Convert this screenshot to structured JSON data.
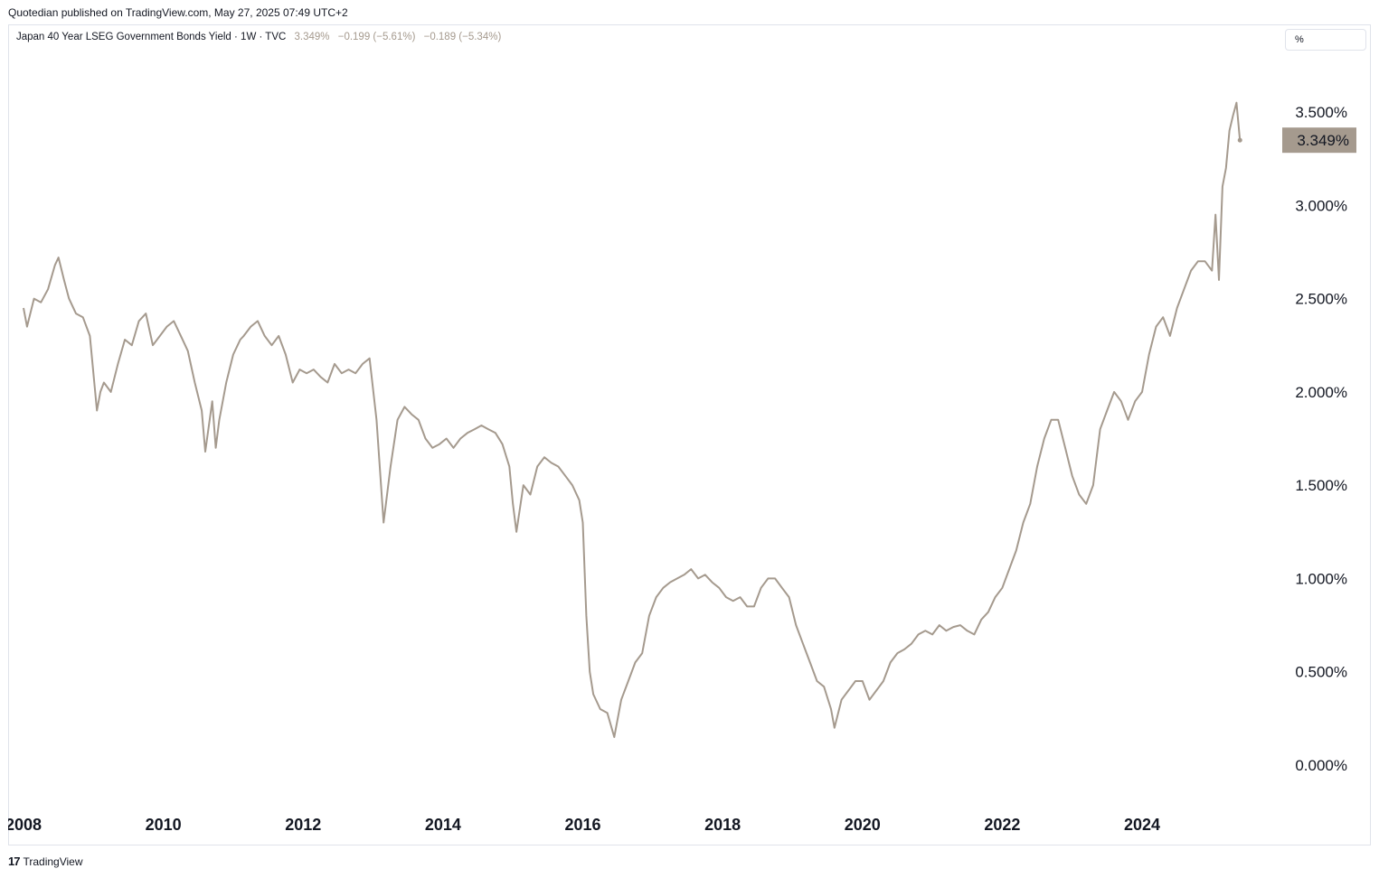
{
  "header": {
    "published": "Quotedian published on TradingView.com, May 27, 2025 07:49 UTC+2"
  },
  "legend": {
    "symbol": "Japan 40 Year LSEG Government Bonds Yield · 1W · TVC",
    "last": "3.349%",
    "change": "−0.199 (−5.61%)",
    "change2": "−0.189 (−5.34%)"
  },
  "unit_selector": {
    "label": "%"
  },
  "footer": {
    "logo": "17",
    "brand": "TradingView"
  },
  "colors": {
    "line": "#a59a8e",
    "price_tag_bg": "#a59a8e",
    "grid": "#e0e3eb"
  },
  "chart_data": {
    "type": "line",
    "title": "Japan 40 Year LSEG Government Bonds Yield",
    "interval": "1W",
    "source": "TVC",
    "xlabel": "",
    "ylabel": "",
    "ylim": [
      0,
      3.5
    ],
    "xlim": [
      2008.0,
      2025.45
    ],
    "y_ticks": [
      {
        "value": 3.5,
        "label": "3.500%"
      },
      {
        "value": 3.0,
        "label": "3.000%"
      },
      {
        "value": 2.5,
        "label": "2.500%"
      },
      {
        "value": 2.0,
        "label": "2.000%"
      },
      {
        "value": 1.5,
        "label": "1.500%"
      },
      {
        "value": 1.0,
        "label": "1.000%"
      },
      {
        "value": 0.5,
        "label": "0.500%"
      },
      {
        "value": 0.0,
        "label": "0.000%"
      }
    ],
    "x_ticks": [
      {
        "value": 2008,
        "label": "2008"
      },
      {
        "value": 2010,
        "label": "2010"
      },
      {
        "value": 2012,
        "label": "2012"
      },
      {
        "value": 2014,
        "label": "2014"
      },
      {
        "value": 2016,
        "label": "2016"
      },
      {
        "value": 2018,
        "label": "2018"
      },
      {
        "value": 2020,
        "label": "2020"
      },
      {
        "value": 2022,
        "label": "2022"
      },
      {
        "value": 2024,
        "label": "2024"
      }
    ],
    "last_value": {
      "value": 3.349,
      "label": "3.349%"
    },
    "grid": false,
    "series": [
      {
        "x": [
          2008.0,
          2008.05,
          2008.15,
          2008.25,
          2008.35,
          2008.45,
          2008.5,
          2008.58,
          2008.65,
          2008.75,
          2008.85,
          2008.95,
          2009.05,
          2009.1,
          2009.15,
          2009.25,
          2009.35,
          2009.45,
          2009.55,
          2009.65,
          2009.75,
          2009.85,
          2009.95,
          2010.05,
          2010.15,
          2010.25,
          2010.35,
          2010.45,
          2010.55,
          2010.6,
          2010.7,
          2010.75,
          2010.8,
          2010.9,
          2011.0,
          2011.1,
          2011.15,
          2011.25,
          2011.35,
          2011.45,
          2011.55,
          2011.65,
          2011.75,
          2011.85,
          2011.95,
          2012.05,
          2012.15,
          2012.25,
          2012.35,
          2012.45,
          2012.55,
          2012.65,
          2012.75,
          2012.85,
          2012.95,
          2013.05,
          2013.15,
          2013.25,
          2013.35,
          2013.45,
          2013.55,
          2013.65,
          2013.75,
          2013.85,
          2013.95,
          2014.05,
          2014.15,
          2014.25,
          2014.35,
          2014.45,
          2014.55,
          2014.65,
          2014.75,
          2014.85,
          2014.95,
          2015.0,
          2015.05,
          2015.15,
          2015.25,
          2015.35,
          2015.45,
          2015.55,
          2015.65,
          2015.75,
          2015.85,
          2015.95,
          2016.0,
          2016.05,
          2016.1,
          2016.15,
          2016.25,
          2016.35,
          2016.45,
          2016.55,
          2016.65,
          2016.75,
          2016.85,
          2016.95,
          2017.05,
          2017.15,
          2017.25,
          2017.35,
          2017.45,
          2017.55,
          2017.65,
          2017.75,
          2017.85,
          2017.95,
          2018.05,
          2018.15,
          2018.25,
          2018.35,
          2018.45,
          2018.55,
          2018.65,
          2018.75,
          2018.85,
          2018.95,
          2019.05,
          2019.15,
          2019.25,
          2019.35,
          2019.45,
          2019.55,
          2019.6,
          2019.7,
          2019.8,
          2019.9,
          2020.0,
          2020.1,
          2020.2,
          2020.3,
          2020.4,
          2020.5,
          2020.6,
          2020.7,
          2020.8,
          2020.9,
          2021.0,
          2021.1,
          2021.2,
          2021.3,
          2021.4,
          2021.5,
          2021.6,
          2021.7,
          2021.8,
          2021.9,
          2022.0,
          2022.1,
          2022.2,
          2022.3,
          2022.4,
          2022.5,
          2022.6,
          2022.7,
          2022.8,
          2022.9,
          2023.0,
          2023.1,
          2023.2,
          2023.3,
          2023.4,
          2023.5,
          2023.6,
          2023.7,
          2023.8,
          2023.9,
          2024.0,
          2024.1,
          2024.2,
          2024.3,
          2024.4,
          2024.5,
          2024.6,
          2024.7,
          2024.8,
          2024.9,
          2025.0,
          2025.05,
          2025.1,
          2025.15,
          2025.2,
          2025.25,
          2025.3,
          2025.35,
          2025.4
        ],
        "y": [
          2.45,
          2.35,
          2.5,
          2.48,
          2.55,
          2.68,
          2.72,
          2.6,
          2.5,
          2.42,
          2.4,
          2.3,
          1.9,
          2.0,
          2.05,
          2.0,
          2.15,
          2.28,
          2.25,
          2.38,
          2.42,
          2.25,
          2.3,
          2.35,
          2.38,
          2.3,
          2.22,
          2.05,
          1.9,
          1.68,
          1.95,
          1.7,
          1.85,
          2.05,
          2.2,
          2.28,
          2.3,
          2.35,
          2.38,
          2.3,
          2.25,
          2.3,
          2.2,
          2.05,
          2.12,
          2.1,
          2.12,
          2.08,
          2.05,
          2.15,
          2.1,
          2.12,
          2.1,
          2.15,
          2.18,
          1.85,
          1.3,
          1.6,
          1.85,
          1.92,
          1.88,
          1.85,
          1.75,
          1.7,
          1.72,
          1.75,
          1.7,
          1.75,
          1.78,
          1.8,
          1.82,
          1.8,
          1.78,
          1.72,
          1.6,
          1.4,
          1.25,
          1.5,
          1.45,
          1.6,
          1.65,
          1.62,
          1.6,
          1.55,
          1.5,
          1.42,
          1.3,
          0.8,
          0.5,
          0.38,
          0.3,
          0.28,
          0.15,
          0.35,
          0.45,
          0.55,
          0.6,
          0.8,
          0.9,
          0.95,
          0.98,
          1.0,
          1.02,
          1.05,
          1.0,
          1.02,
          0.98,
          0.95,
          0.9,
          0.88,
          0.9,
          0.85,
          0.85,
          0.95,
          1.0,
          1.0,
          0.95,
          0.9,
          0.75,
          0.65,
          0.55,
          0.45,
          0.42,
          0.3,
          0.2,
          0.35,
          0.4,
          0.45,
          0.45,
          0.35,
          0.4,
          0.45,
          0.55,
          0.6,
          0.62,
          0.65,
          0.7,
          0.72,
          0.7,
          0.75,
          0.72,
          0.74,
          0.75,
          0.72,
          0.7,
          0.78,
          0.82,
          0.9,
          0.95,
          1.05,
          1.15,
          1.3,
          1.4,
          1.6,
          1.75,
          1.85,
          1.85,
          1.7,
          1.55,
          1.45,
          1.4,
          1.5,
          1.8,
          1.9,
          2.0,
          1.95,
          1.85,
          1.95,
          2.0,
          2.2,
          2.35,
          2.4,
          2.3,
          2.45,
          2.55,
          2.65,
          2.7,
          2.7,
          2.65,
          2.95,
          2.6,
          3.1,
          3.2,
          3.4,
          3.48,
          3.55,
          3.349
        ]
      }
    ]
  }
}
